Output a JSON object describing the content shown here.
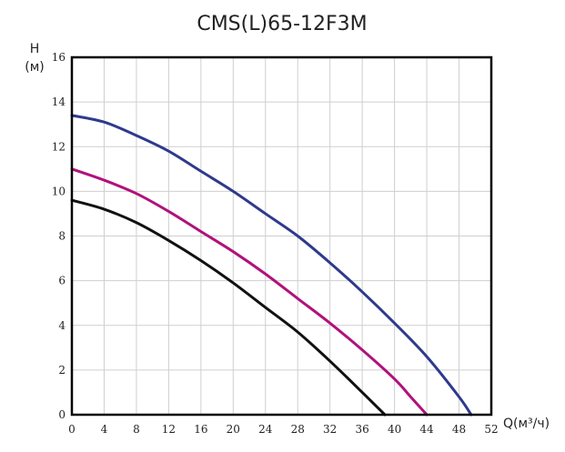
{
  "chart_data": {
    "type": "line",
    "title": "CMS(L)65-12F3M",
    "ylabel_line1": "H",
    "ylabel_line2": "(м)",
    "xlabel": "Q(м³/ч)",
    "xlim": [
      0,
      52
    ],
    "ylim": [
      0,
      16
    ],
    "xticks": [
      0,
      4,
      8,
      12,
      16,
      20,
      24,
      28,
      32,
      36,
      40,
      44,
      48,
      52
    ],
    "yticks": [
      0,
      2,
      4,
      6,
      8,
      10,
      12,
      14,
      16
    ],
    "xticklabels": [
      "0",
      "4",
      "8",
      "12",
      "16",
      "20",
      "24",
      "28",
      "32",
      "36",
      "40",
      "44",
      "48",
      "52"
    ],
    "yticklabels": [
      "0",
      "2",
      "4",
      "6",
      "8",
      "10",
      "12",
      "14",
      "16"
    ],
    "grid": true,
    "series": [
      {
        "color": "#2e3a8c",
        "points": [
          [
            0,
            13.4
          ],
          [
            4,
            13.1
          ],
          [
            8,
            12.5
          ],
          [
            12,
            11.8
          ],
          [
            16,
            10.9
          ],
          [
            20,
            10.0
          ],
          [
            24,
            9.0
          ],
          [
            28,
            8.0
          ],
          [
            32,
            6.8
          ],
          [
            36,
            5.5
          ],
          [
            40,
            4.1
          ],
          [
            44,
            2.6
          ],
          [
            48,
            0.8
          ],
          [
            49.5,
            0.0
          ]
        ]
      },
      {
        "color": "#b0127a",
        "points": [
          [
            0,
            11.0
          ],
          [
            4,
            10.5
          ],
          [
            8,
            9.9
          ],
          [
            12,
            9.1
          ],
          [
            16,
            8.2
          ],
          [
            20,
            7.3
          ],
          [
            24,
            6.3
          ],
          [
            28,
            5.2
          ],
          [
            32,
            4.1
          ],
          [
            36,
            2.9
          ],
          [
            40,
            1.6
          ],
          [
            42,
            0.8
          ],
          [
            44,
            0.0
          ]
        ]
      },
      {
        "color": "#111111",
        "points": [
          [
            0,
            9.6
          ],
          [
            4,
            9.2
          ],
          [
            8,
            8.6
          ],
          [
            12,
            7.8
          ],
          [
            16,
            6.9
          ],
          [
            20,
            5.9
          ],
          [
            24,
            4.8
          ],
          [
            28,
            3.7
          ],
          [
            32,
            2.4
          ],
          [
            36,
            1.0
          ],
          [
            38.8,
            0.0
          ]
        ]
      }
    ]
  }
}
